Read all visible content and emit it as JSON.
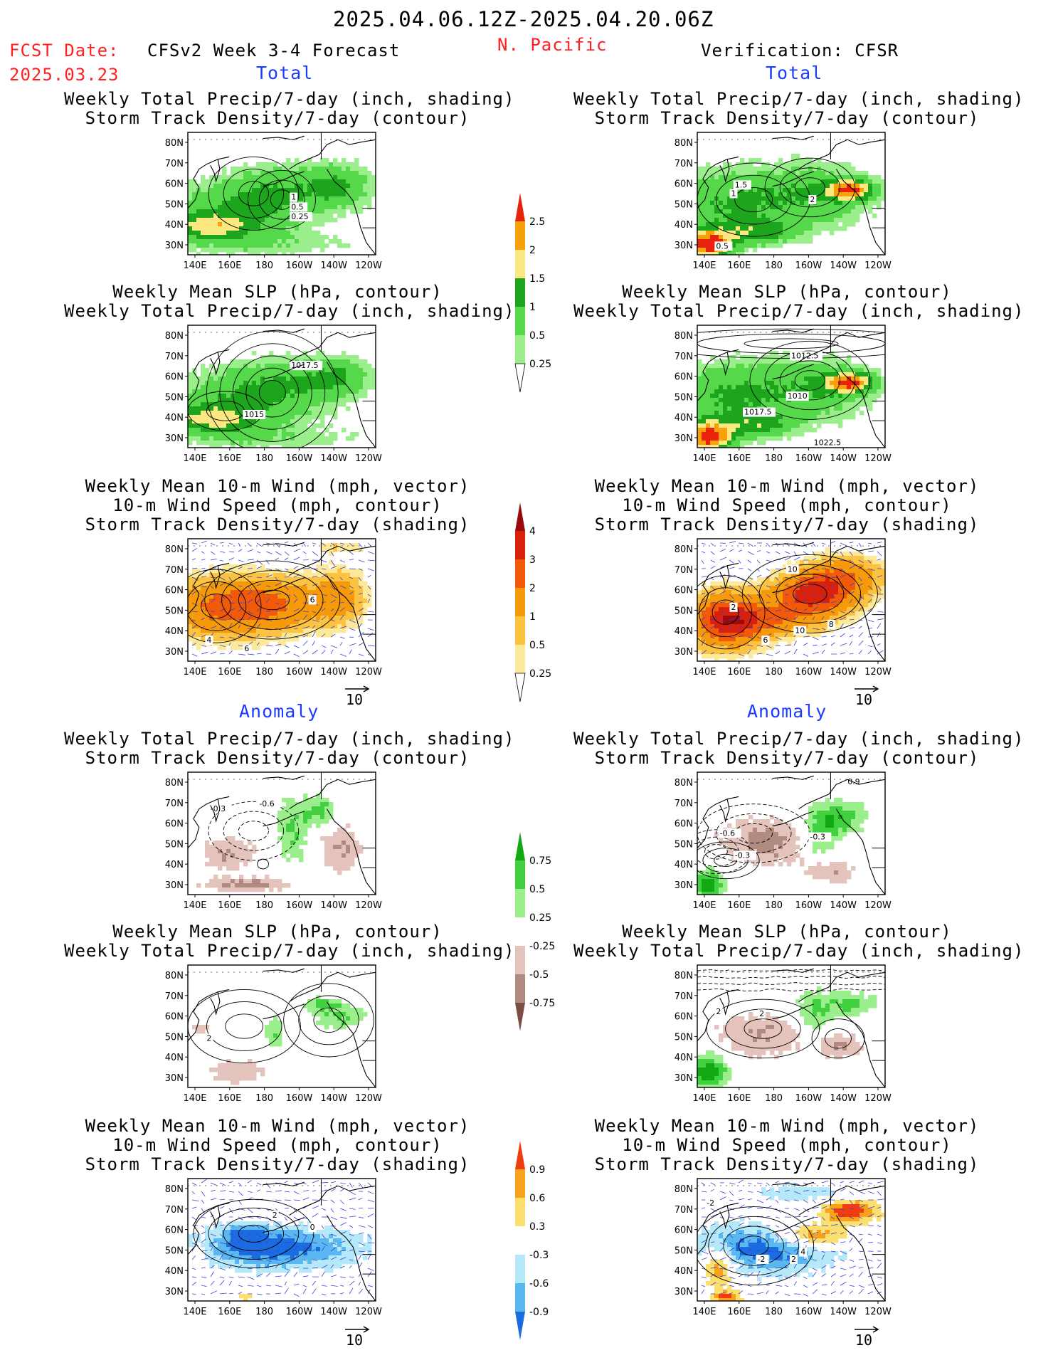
{
  "header": {
    "date_range": "2025.04.06.12Z-2025.04.20.06Z",
    "fcst_date_label": "FCST Date:",
    "fcst_date_value": "2025.03.23",
    "forecast_title": "CFSv2 Week 3-4 Forecast",
    "region": "N. Pacific",
    "verification_title": "Verification: CFSR"
  },
  "sections": {
    "total": "Total",
    "anomaly": "Anomaly"
  },
  "axis": {
    "lat_labels": [
      "80N",
      "70N",
      "60N",
      "50N",
      "40N",
      "30N"
    ],
    "lon_labels": [
      "140E",
      "160E",
      "180",
      "160W",
      "140W",
      "120W"
    ]
  },
  "panel_titles": {
    "precip_storm": [
      "Weekly Total Precip/7-day (inch, shading)",
      "Storm Track Density/7-day (contour)"
    ],
    "slp_precip": [
      "Weekly Mean SLP (hPa, contour)",
      "Weekly Total Precip/7-day (inch, shading)"
    ],
    "wind_storm": [
      "Weekly Mean 10-m Wind (mph, vector)",
      "10-m Wind Speed (mph, contour)",
      "Storm Track Density/7-day (shading)"
    ]
  },
  "vector_reference": "10",
  "contour_labels": {
    "f_total_precip": [
      "1",
      "0.5",
      "0.25"
    ],
    "v_total_precip": [
      "1.5",
      "1",
      "2",
      "0.5"
    ],
    "f_total_slp": [
      "1017.5",
      "1015"
    ],
    "v_total_slp": [
      "1012.5",
      "1010",
      "1017.5",
      "1022.5"
    ],
    "f_total_wind": [
      "6",
      "4",
      "6"
    ],
    "v_total_wind": [
      "10",
      "2",
      "10",
      "8",
      "6"
    ],
    "f_anom_precip": [
      "-0.3",
      "-0.6"
    ],
    "v_anom_precip": [
      "0.9",
      "-0.6",
      "-0.3",
      "-0.3"
    ],
    "f_anom_slp": [
      "2"
    ],
    "v_anom_slp": [
      "2",
      "2"
    ],
    "f_anom_wind": [
      "2",
      "0"
    ],
    "v_anom_wind": [
      "-2",
      "-2",
      "4",
      "2"
    ]
  },
  "colorbars": {
    "total_precip": {
      "labels": [
        "2.5",
        "2",
        "1.5",
        "1",
        "0.5",
        "0.25"
      ],
      "colors": [
        "#e8220c",
        "#f7a10a",
        "#fce880",
        "#1ea51e",
        "#55d84a",
        "#9aef8c",
        "#ffffff"
      ]
    },
    "storm_density": {
      "labels": [
        "4",
        "3",
        "2",
        "1",
        "0.5",
        "0.25"
      ],
      "colors": [
        "#9a0a0a",
        "#d8200c",
        "#f25a0a",
        "#f79a0a",
        "#fbc33f",
        "#fce99a",
        "#ffffff"
      ]
    },
    "anom_precip": {
      "labels": [
        "0.75",
        "0.5",
        "0.25",
        "-0.25",
        "-0.5",
        "-0.75"
      ],
      "colors": [
        "#12a812",
        "#40d040",
        "#9aef8c",
        "#ffffff",
        "#e3c3bb",
        "#b18b82",
        "#7a4e44"
      ]
    },
    "anom_storm": {
      "labels": [
        "0.9",
        "0.6",
        "0.3",
        "-0.3",
        "-0.6",
        "-0.9"
      ],
      "colors": [
        "#f03c10",
        "#f8a11a",
        "#fbe070",
        "#ffffff",
        "#b5e8f8",
        "#5ab8f0",
        "#1a6ce0"
      ]
    }
  },
  "colors": {
    "header_red": "#ff2020",
    "section_blue": "#1a3cff",
    "coast": "#000000",
    "vector": "#3c3cd8"
  }
}
